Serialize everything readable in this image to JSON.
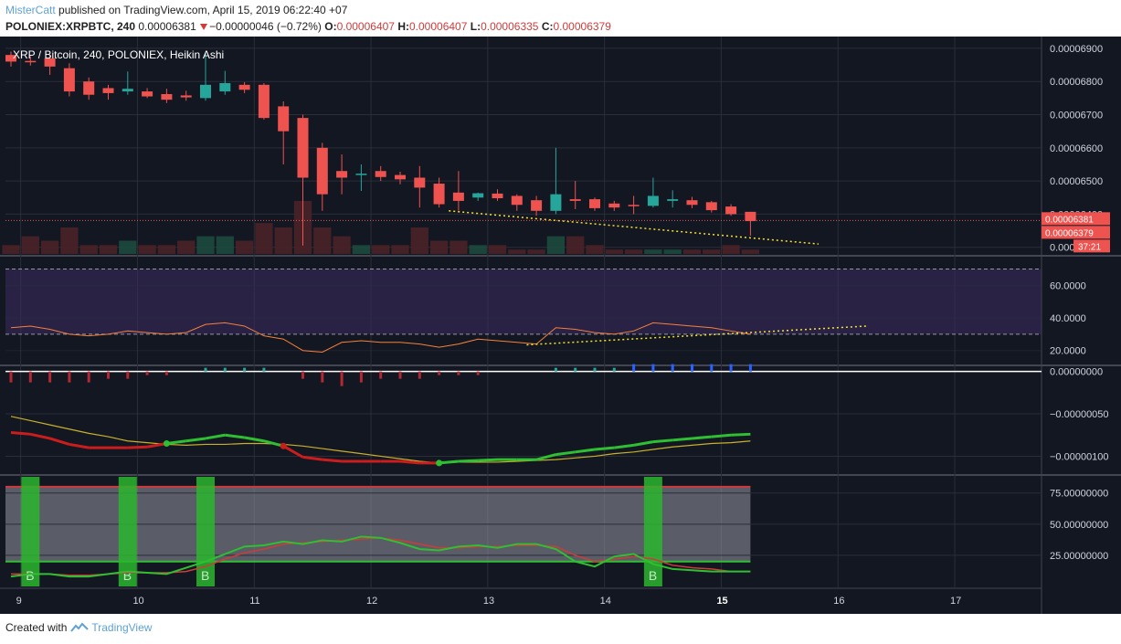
{
  "header": {
    "author": "MisterCatt",
    "published_text": "published on TradingView.com, April 15, 2019 06:22:40 +07",
    "symbol": "POLONIEX:XRPBTC, 240",
    "price": "0.00006381",
    "change": "−0.00000046 (−0.72%)",
    "o_label": "O:",
    "o_value": "0.00006407",
    "h_label": "H:",
    "h_value": "0.00006407",
    "l_label": "L:",
    "l_value": "0.00006335",
    "c_label": "C:",
    "c_value": "0.00006379"
  },
  "footer": {
    "created_with": "Created with",
    "brand": "TradingView"
  },
  "colors": {
    "background": "#131722",
    "bull": "#26a69a",
    "bear": "#ef5350",
    "grid": "#2a2e39",
    "axis_text": "#d1d4dc",
    "rsi_line": "#f5813b",
    "rsi_band": "#3d2b63",
    "trendline": "#f5e135",
    "wt_fast": "#cc1d1d",
    "wt_fast_up": "#2fbf32",
    "wt_slow": "#c7b02a",
    "stoch_k": "#2fbf32",
    "stoch_d": "#d03a3a",
    "buy_bar": "#2bb52e"
  },
  "chart_data": [
    {
      "type": "candlestick",
      "title": "XRP / Bitcoin, 240, POLONIEX, Heikin Ashi",
      "x_labels": [
        "9",
        "10",
        "11",
        "12",
        "13",
        "14",
        "15",
        "16",
        "17"
      ],
      "x_label_pos": [
        0.5,
        6.5,
        12.5,
        18.5,
        24.5,
        30.5,
        36.5,
        42.5,
        48.5
      ],
      "ylim": [
        6.28e-05,
        6.93e-05
      ],
      "y_ticks": [
        "0.00006900",
        "0.00006800",
        "0.00006700",
        "0.00006600",
        "0.00006500",
        "0.00006400",
        "0.00006300"
      ],
      "y_tick_values": [
        6.9e-05,
        6.8e-05,
        6.7e-05,
        6.6e-05,
        6.5e-05,
        6.4e-05,
        6.3e-05
      ],
      "price_labels": [
        "0.00006381",
        "0.00006379",
        "37:21"
      ],
      "current_price": 6.381e-05,
      "candles": [
        {
          "o": 6880,
          "h": 6890,
          "l": 6845,
          "c": 6860
        },
        {
          "o": 6862,
          "h": 6876,
          "l": 6848,
          "c": 6858
        },
        {
          "o": 6870,
          "h": 6880,
          "l": 6820,
          "c": 6845
        },
        {
          "o": 6840,
          "h": 6855,
          "l": 6755,
          "c": 6770
        },
        {
          "o": 6800,
          "h": 6812,
          "l": 6745,
          "c": 6760
        },
        {
          "o": 6780,
          "h": 6790,
          "l": 6745,
          "c": 6765
        },
        {
          "o": 6770,
          "h": 6830,
          "l": 6760,
          "c": 6778
        },
        {
          "o": 6770,
          "h": 6780,
          "l": 6750,
          "c": 6755
        },
        {
          "o": 6762,
          "h": 6778,
          "l": 6735,
          "c": 6745
        },
        {
          "o": 6758,
          "h": 6772,
          "l": 6742,
          "c": 6752
        },
        {
          "o": 6750,
          "h": 6885,
          "l": 6742,
          "c": 6790
        },
        {
          "o": 6770,
          "h": 6832,
          "l": 6760,
          "c": 6795
        },
        {
          "o": 6790,
          "h": 6798,
          "l": 6765,
          "c": 6775
        },
        {
          "o": 6790,
          "h": 6795,
          "l": 6685,
          "c": 6690
        },
        {
          "o": 6725,
          "h": 6740,
          "l": 6550,
          "c": 6650
        },
        {
          "o": 6690,
          "h": 6700,
          "l": 6305,
          "c": 6510
        },
        {
          "o": 6600,
          "h": 6615,
          "l": 6410,
          "c": 6460
        },
        {
          "o": 6530,
          "h": 6580,
          "l": 6460,
          "c": 6510
        },
        {
          "o": 6518,
          "h": 6550,
          "l": 6470,
          "c": 6522
        },
        {
          "o": 6530,
          "h": 6545,
          "l": 6500,
          "c": 6512
        },
        {
          "o": 6518,
          "h": 6528,
          "l": 6490,
          "c": 6505
        },
        {
          "o": 6510,
          "h": 6545,
          "l": 6420,
          "c": 6480
        },
        {
          "o": 6492,
          "h": 6510,
          "l": 6420,
          "c": 6430
        },
        {
          "o": 6465,
          "h": 6530,
          "l": 6410,
          "c": 6440
        },
        {
          "o": 6450,
          "h": 6465,
          "l": 6440,
          "c": 6463
        },
        {
          "o": 6462,
          "h": 6475,
          "l": 6440,
          "c": 6448
        },
        {
          "o": 6455,
          "h": 6460,
          "l": 6410,
          "c": 6428
        },
        {
          "o": 6442,
          "h": 6455,
          "l": 6395,
          "c": 6410
        },
        {
          "o": 6410,
          "h": 6600,
          "l": 6400,
          "c": 6460
        },
        {
          "o": 6445,
          "h": 6500,
          "l": 6415,
          "c": 6440
        },
        {
          "o": 6445,
          "h": 6450,
          "l": 6410,
          "c": 6418
        },
        {
          "o": 6432,
          "h": 6440,
          "l": 6410,
          "c": 6420
        },
        {
          "o": 6428,
          "h": 6455,
          "l": 6400,
          "c": 6425
        },
        {
          "o": 6425,
          "h": 6510,
          "l": 6420,
          "c": 6455
        },
        {
          "o": 6440,
          "h": 6472,
          "l": 6420,
          "c": 6445
        },
        {
          "o": 6442,
          "h": 6452,
          "l": 6418,
          "c": 6428
        },
        {
          "o": 6436,
          "h": 6440,
          "l": 6405,
          "c": 6412
        },
        {
          "o": 6423,
          "h": 6430,
          "l": 6395,
          "c": 6400
        },
        {
          "o": 6407,
          "h": 6407,
          "l": 6335,
          "c": 6379
        }
      ],
      "volume": [
        2,
        4,
        3,
        6,
        2,
        2,
        3,
        2,
        2,
        3,
        4,
        4,
        3,
        7,
        6,
        12,
        6,
        4,
        2,
        2,
        2,
        6,
        3,
        3,
        2,
        2,
        1,
        1,
        4,
        4,
        2,
        1,
        1,
        1,
        1,
        1,
        1,
        2,
        1
      ],
      "trendline": {
        "from_index": 22.5,
        "from_value": 6.41e-05,
        "to_index": 41.5,
        "to_value": 6.31e-05
      }
    },
    {
      "type": "line",
      "name": "RSI",
      "ylim": [
        12,
        77
      ],
      "y_ticks": [
        "60.0000",
        "40.0000",
        "20.0000"
      ],
      "y_tick_values": [
        60,
        40,
        20
      ],
      "upper_band": 70,
      "lower_band": 30,
      "values": [
        34,
        35,
        33,
        30,
        29,
        30,
        32,
        31,
        30,
        31,
        36,
        37,
        35,
        29,
        27,
        20,
        19,
        25,
        26,
        25,
        25,
        24,
        22,
        24,
        27,
        26,
        25,
        24,
        34,
        33,
        31,
        30,
        32,
        37,
        36,
        35,
        34,
        32,
        30
      ],
      "trendline": {
        "from_index": 26.5,
        "from_value": 23.5,
        "to_index": 44,
        "to_value": 35
      }
    },
    {
      "type": "line",
      "name": "Oscillator",
      "ylim": [
        -1.2e-06,
        5e-08
      ],
      "y_ticks": [
        "0.00000000",
        "−0.00000050",
        "−0.00000100"
      ],
      "y_tick_values": [
        0,
        -5e-07,
        -1e-06
      ],
      "histogram": [
        -3,
        -3,
        -3,
        -3,
        -3,
        -2,
        -2,
        -1,
        -1,
        0,
        1,
        1,
        1,
        1,
        0,
        -2,
        -3,
        -4,
        -3,
        -2,
        -2,
        -2,
        -1,
        -1,
        -1,
        0,
        0,
        0,
        1,
        1,
        1,
        1,
        2,
        2,
        2,
        2,
        2,
        2,
        2
      ],
      "fast": [
        -7.2e-07,
        -7.4e-07,
        -7.9e-07,
        -8.6e-07,
        -9e-07,
        -9e-07,
        -9e-07,
        -8.9e-07,
        -8.5e-07,
        -8.2e-07,
        -7.9e-07,
        -7.5e-07,
        -7.8e-07,
        -8.2e-07,
        -8.8e-07,
        -1.01e-06,
        -1.04e-06,
        -1.06e-06,
        -1.06e-06,
        -1.06e-06,
        -1.06e-06,
        -1.08e-06,
        -1.08e-06,
        -1.06e-06,
        -1.05e-06,
        -1.04e-06,
        -1.04e-06,
        -1.04e-06,
        -9.8e-07,
        -9.5e-07,
        -9.2e-07,
        -9e-07,
        -8.7e-07,
        -8.3e-07,
        -8.1e-07,
        -7.9e-07,
        -7.7e-07,
        -7.5e-07,
        -7.4e-07
      ],
      "slow": [
        -5.3e-07,
        -5.8e-07,
        -6.3e-07,
        -6.8e-07,
        -7.3e-07,
        -7.7e-07,
        -8.2e-07,
        -8.4e-07,
        -8.6e-07,
        -8.7e-07,
        -8.6e-07,
        -8.6e-07,
        -8.5e-07,
        -8.5e-07,
        -8.6e-07,
        -8.8e-07,
        -9.1e-07,
        -9.4e-07,
        -9.7e-07,
        -1e-06,
        -1.03e-06,
        -1.06e-06,
        -1.08e-06,
        -1.07e-06,
        -1.07e-06,
        -1.07e-06,
        -1.06e-06,
        -1.05e-06,
        -1.04e-06,
        -1.02e-06,
        -1e-06,
        -9.7e-07,
        -9.5e-07,
        -9.2e-07,
        -8.9e-07,
        -8.7e-07,
        -8.5e-07,
        -8.4e-07,
        -8.2e-07
      ]
    },
    {
      "type": "line",
      "name": "Stochastic",
      "ylim": [
        0,
        88
      ],
      "y_ticks": [
        "75.00000000",
        "50.00000000",
        "25.00000000"
      ],
      "y_tick_values": [
        75,
        50,
        25
      ],
      "upper_line": 80,
      "lower_line": 20,
      "k": [
        8,
        10,
        10,
        8,
        8,
        10,
        12,
        11,
        10,
        15,
        20,
        26,
        32,
        33,
        36,
        34,
        37,
        36,
        40,
        39,
        35,
        30,
        29,
        32,
        33,
        31,
        34,
        34,
        30,
        20,
        16,
        24,
        26,
        18,
        14,
        13,
        12,
        12,
        12
      ],
      "d": [
        10,
        10,
        10,
        9,
        9,
        10,
        11,
        11,
        11,
        12,
        16,
        22,
        27,
        30,
        34,
        35,
        36,
        37,
        38,
        39,
        37,
        34,
        31,
        31,
        32,
        32,
        33,
        33,
        32,
        25,
        20,
        22,
        24,
        22,
        17,
        15,
        14,
        12,
        12
      ],
      "buy_signals": [
        1,
        6,
        10,
        33
      ],
      "buy_label": "B"
    }
  ]
}
